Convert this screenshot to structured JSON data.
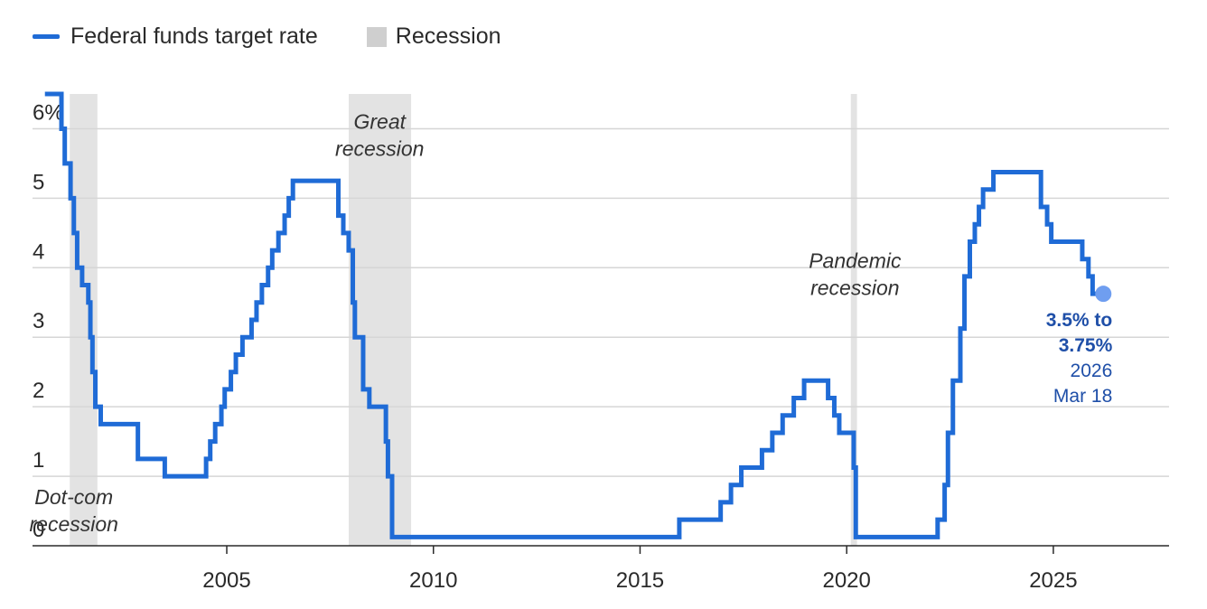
{
  "legend": {
    "series_label": "Federal funds target rate",
    "recession_label": "Recession"
  },
  "colors": {
    "series": "#1f6bd6",
    "recession": "#e3e3e3",
    "endpoint": "#6f9ef0",
    "annotation": "#1f4fa8"
  },
  "chart_data": {
    "type": "line",
    "title": "",
    "xlabel": "",
    "ylabel": "",
    "xlim": [
      2000.3,
      2027.8
    ],
    "ylim": [
      0,
      6.5
    ],
    "grid": true,
    "legend_position": "top-left",
    "x_ticks": [
      2005,
      2010,
      2015,
      2020,
      2025
    ],
    "x_tick_labels": [
      "2005",
      "2010",
      "2015",
      "2020",
      "2025"
    ],
    "y_ticks": [
      0,
      1,
      2,
      3,
      4,
      5,
      6
    ],
    "y_tick_labels": [
      "0",
      "1",
      "2",
      "3",
      "4",
      "5",
      "6%"
    ],
    "series": [
      {
        "name": "Federal funds target rate",
        "step": true,
        "points": [
          [
            2000.6,
            6.5
          ],
          [
            2001.0,
            6.0
          ],
          [
            2001.08,
            5.5
          ],
          [
            2001.22,
            5.0
          ],
          [
            2001.3,
            4.5
          ],
          [
            2001.38,
            4.0
          ],
          [
            2001.5,
            3.75
          ],
          [
            2001.65,
            3.5
          ],
          [
            2001.7,
            3.0
          ],
          [
            2001.75,
            2.5
          ],
          [
            2001.82,
            2.0
          ],
          [
            2001.95,
            1.75
          ],
          [
            2002.85,
            1.25
          ],
          [
            2003.5,
            1.0
          ],
          [
            2004.5,
            1.25
          ],
          [
            2004.6,
            1.5
          ],
          [
            2004.72,
            1.75
          ],
          [
            2004.87,
            2.0
          ],
          [
            2004.95,
            2.25
          ],
          [
            2005.1,
            2.5
          ],
          [
            2005.22,
            2.75
          ],
          [
            2005.38,
            3.0
          ],
          [
            2005.6,
            3.25
          ],
          [
            2005.72,
            3.5
          ],
          [
            2005.85,
            3.75
          ],
          [
            2006.0,
            4.0
          ],
          [
            2006.1,
            4.25
          ],
          [
            2006.25,
            4.5
          ],
          [
            2006.4,
            4.75
          ],
          [
            2006.5,
            5.0
          ],
          [
            2006.6,
            5.25
          ],
          [
            2007.7,
            4.75
          ],
          [
            2007.82,
            4.5
          ],
          [
            2007.95,
            4.25
          ],
          [
            2008.05,
            3.5
          ],
          [
            2008.1,
            3.0
          ],
          [
            2008.3,
            2.25
          ],
          [
            2008.45,
            2.0
          ],
          [
            2008.85,
            1.5
          ],
          [
            2008.9,
            1.0
          ],
          [
            2009.0,
            0.125
          ],
          [
            2015.95,
            0.375
          ],
          [
            2016.95,
            0.625
          ],
          [
            2017.2,
            0.875
          ],
          [
            2017.45,
            1.125
          ],
          [
            2017.95,
            1.375
          ],
          [
            2018.2,
            1.625
          ],
          [
            2018.45,
            1.875
          ],
          [
            2018.72,
            2.125
          ],
          [
            2018.97,
            2.375
          ],
          [
            2019.55,
            2.125
          ],
          [
            2019.7,
            1.875
          ],
          [
            2019.82,
            1.625
          ],
          [
            2020.17,
            1.125
          ],
          [
            2020.22,
            0.125
          ],
          [
            2022.2,
            0.375
          ],
          [
            2022.37,
            0.875
          ],
          [
            2022.45,
            1.625
          ],
          [
            2022.57,
            2.375
          ],
          [
            2022.75,
            3.125
          ],
          [
            2022.85,
            3.875
          ],
          [
            2022.98,
            4.375
          ],
          [
            2023.1,
            4.625
          ],
          [
            2023.2,
            4.875
          ],
          [
            2023.3,
            5.125
          ],
          [
            2023.55,
            5.375
          ],
          [
            2024.7,
            4.875
          ],
          [
            2024.85,
            4.625
          ],
          [
            2024.95,
            4.375
          ],
          [
            2025.7,
            4.125
          ],
          [
            2025.85,
            3.875
          ],
          [
            2025.95,
            3.625
          ],
          [
            2026.21,
            3.625
          ]
        ]
      }
    ],
    "recessions": [
      {
        "name": "Dot-com recession",
        "start": 2001.2,
        "end": 2001.87
      },
      {
        "name": "Great recession",
        "start": 2007.95,
        "end": 2009.46
      },
      {
        "name": "Pandemic recession",
        "start": 2020.1,
        "end": 2020.25
      }
    ],
    "annotations": {
      "recession_labels": [
        {
          "lines": [
            "Dot-com",
            "recession"
          ],
          "x": 2001.3,
          "y": 0.6
        },
        {
          "lines": [
            "Great",
            "recession"
          ],
          "x": 2008.7,
          "y": 6.0
        },
        {
          "lines": [
            "Pandemic",
            "recession"
          ],
          "x": 2020.2,
          "y": 4.0
        }
      ],
      "endpoint": {
        "x": 2026.21,
        "y": 3.625,
        "bold_lines": [
          "3.5% to",
          "3.75%"
        ],
        "normal_lines": [
          "2026",
          "Mar 18"
        ]
      }
    }
  }
}
